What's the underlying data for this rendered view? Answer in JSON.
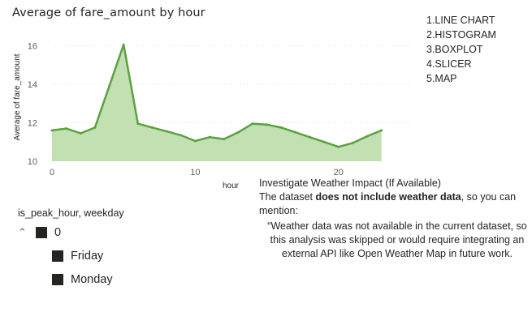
{
  "chart": {
    "title": "Average of fare_amount by hour"
  },
  "chart_data": {
    "type": "area",
    "title": "Average of fare_amount by hour",
    "xlabel": "hour",
    "ylabel": "Average of fare_amount",
    "x": [
      0,
      1,
      2,
      3,
      4,
      5,
      6,
      7,
      8,
      9,
      10,
      11,
      12,
      13,
      14,
      15,
      16,
      17,
      18,
      19,
      20,
      21,
      22,
      23
    ],
    "series": [
      {
        "values": [
          11.6,
          11.7,
          11.45,
          11.75,
          13.9,
          16.05,
          11.95,
          11.75,
          11.55,
          11.35,
          11.05,
          11.25,
          11.15,
          11.5,
          11.95,
          11.9,
          11.75,
          11.5,
          11.25,
          11.0,
          10.75,
          10.95,
          11.3,
          11.6
        ]
      }
    ],
    "xlim": [
      0,
      25
    ],
    "ylim": [
      10,
      16.6
    ],
    "x_ticks": [
      "0",
      "10",
      "20"
    ],
    "y_ticks": [
      "10",
      "12",
      "14",
      "16"
    ],
    "grid": true,
    "colors": {
      "line": "#5ba142",
      "fill": "#c2e0b2"
    }
  },
  "notes": {
    "items": [
      "1.LINE CHART",
      "2.HISTOGRAM",
      "3.BOXPLOT",
      "4.SLICER",
      "5.MAP"
    ]
  },
  "weather": {
    "heading": "Investigate Weather Impact (If Available)",
    "line_prefix": "The dataset ",
    "line_bold": "does not include weather data",
    "line_suffix": ", so you can",
    "line2": "mention:",
    "quote_line1": "“Weather data was not available in the current dataset, so",
    "quote_line2": "this analysis was skipped or would require integrating an",
    "quote_line3": "external API like Open Weather Map in future work."
  },
  "slicer": {
    "header": "is_peak_hour, weekday",
    "group_label": "0",
    "items": [
      "Friday",
      "Monday"
    ]
  }
}
